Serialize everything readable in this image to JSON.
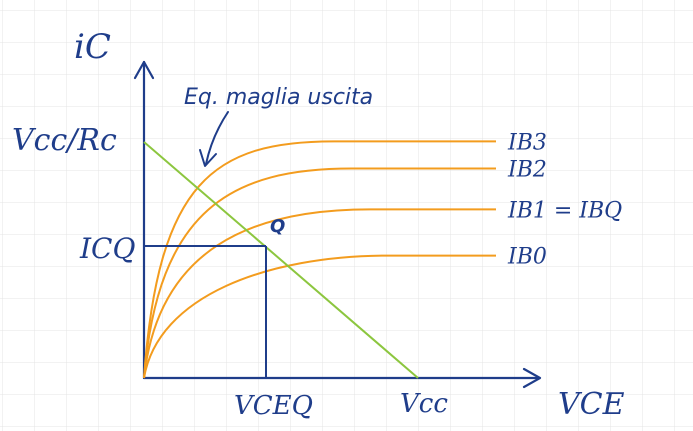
{
  "colors": {
    "grid": "#e4e4e4",
    "axis": "#1f3d8a",
    "load_line": "#8cc63f",
    "curves": "#f39c1e",
    "text": "#1f3d8a"
  },
  "labels": {
    "y_axis": "iC",
    "x_axis": "VCE",
    "y_intercept": "Vcc/Rc",
    "x_intercept": "Vcc",
    "icq": "ICQ",
    "vceq": "VCEQ",
    "q_point": "Q",
    "annotation": "Eq. maglia uscita"
  },
  "curves": [
    {
      "label": "IB3",
      "level": 0.87
    },
    {
      "label": "IB2",
      "level": 0.77
    },
    {
      "label": "IB1 = IBQ",
      "level": 0.62
    },
    {
      "label": "IB0",
      "level": 0.45
    }
  ],
  "load_line": {
    "vcc": 1.0,
    "vcc_over_rc": 1.0
  },
  "q_point": {
    "vce": 0.5,
    "ic": 0.5
  }
}
